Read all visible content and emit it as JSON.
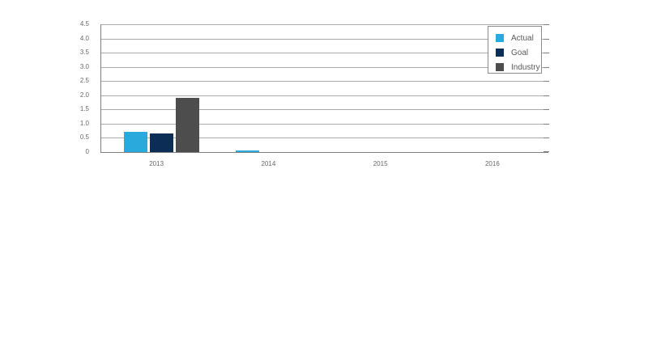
{
  "chart_data": {
    "type": "bar",
    "title": "",
    "categories": [
      "2013",
      "2014",
      "2015",
      "2016"
    ],
    "series": [
      {
        "name": "Actual",
        "color": "#29a9dc",
        "values": [
          0.7,
          0.05,
          0,
          0
        ]
      },
      {
        "name": "Goal",
        "color": "#0c2d55",
        "values": [
          0.65,
          0,
          0,
          0
        ]
      },
      {
        "name": "Industry",
        "color": "#4d4d4d",
        "values": [
          1.9,
          0,
          0,
          0
        ]
      }
    ],
    "ylim": [
      0,
      4.5
    ],
    "ytick_step": 0.5,
    "ytick_labels": [
      "4.5",
      "4.0",
      "3.5",
      "3.0",
      "2.5",
      "2.0",
      "1.5",
      "1.0",
      "0.5",
      "0"
    ],
    "grid": true,
    "legend_position": "top-right"
  },
  "colors": {
    "background": "#ffffff",
    "gridline": "#aaaaaa",
    "axis": "#7f7f7f",
    "tick_text": "#666666",
    "legend_text": "#595959",
    "legend_border": "#8c8c8c"
  }
}
